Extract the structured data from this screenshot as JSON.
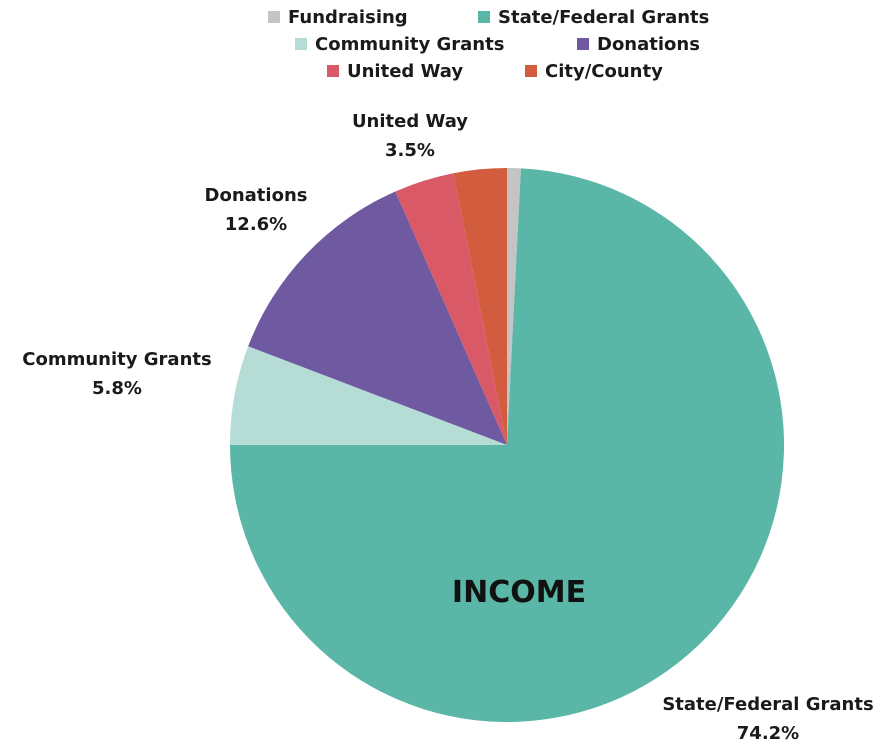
{
  "chart_data": {
    "type": "pie",
    "title": "INCOME",
    "legend_position": "top",
    "slices": [
      {
        "label": "Fundraising",
        "value": 0.8,
        "color": "#c4c4c4",
        "value_label": ""
      },
      {
        "label": "State/Federal Grants",
        "value": 74.2,
        "color": "#5ab6a6",
        "value_label": "74.2%"
      },
      {
        "label": "Community Grants",
        "value": 5.8,
        "color": "#b5ddd6",
        "value_label": "5.8%"
      },
      {
        "label": "Donations",
        "value": 12.6,
        "color": "#6f5aa2",
        "value_label": "12.6%"
      },
      {
        "label": "United Way",
        "value": 3.5,
        "color": "#d95a66",
        "value_label": "3.5%"
      },
      {
        "label": "City/County",
        "value": 3.1,
        "color": "#d25c3e",
        "value_label": ""
      }
    ]
  }
}
